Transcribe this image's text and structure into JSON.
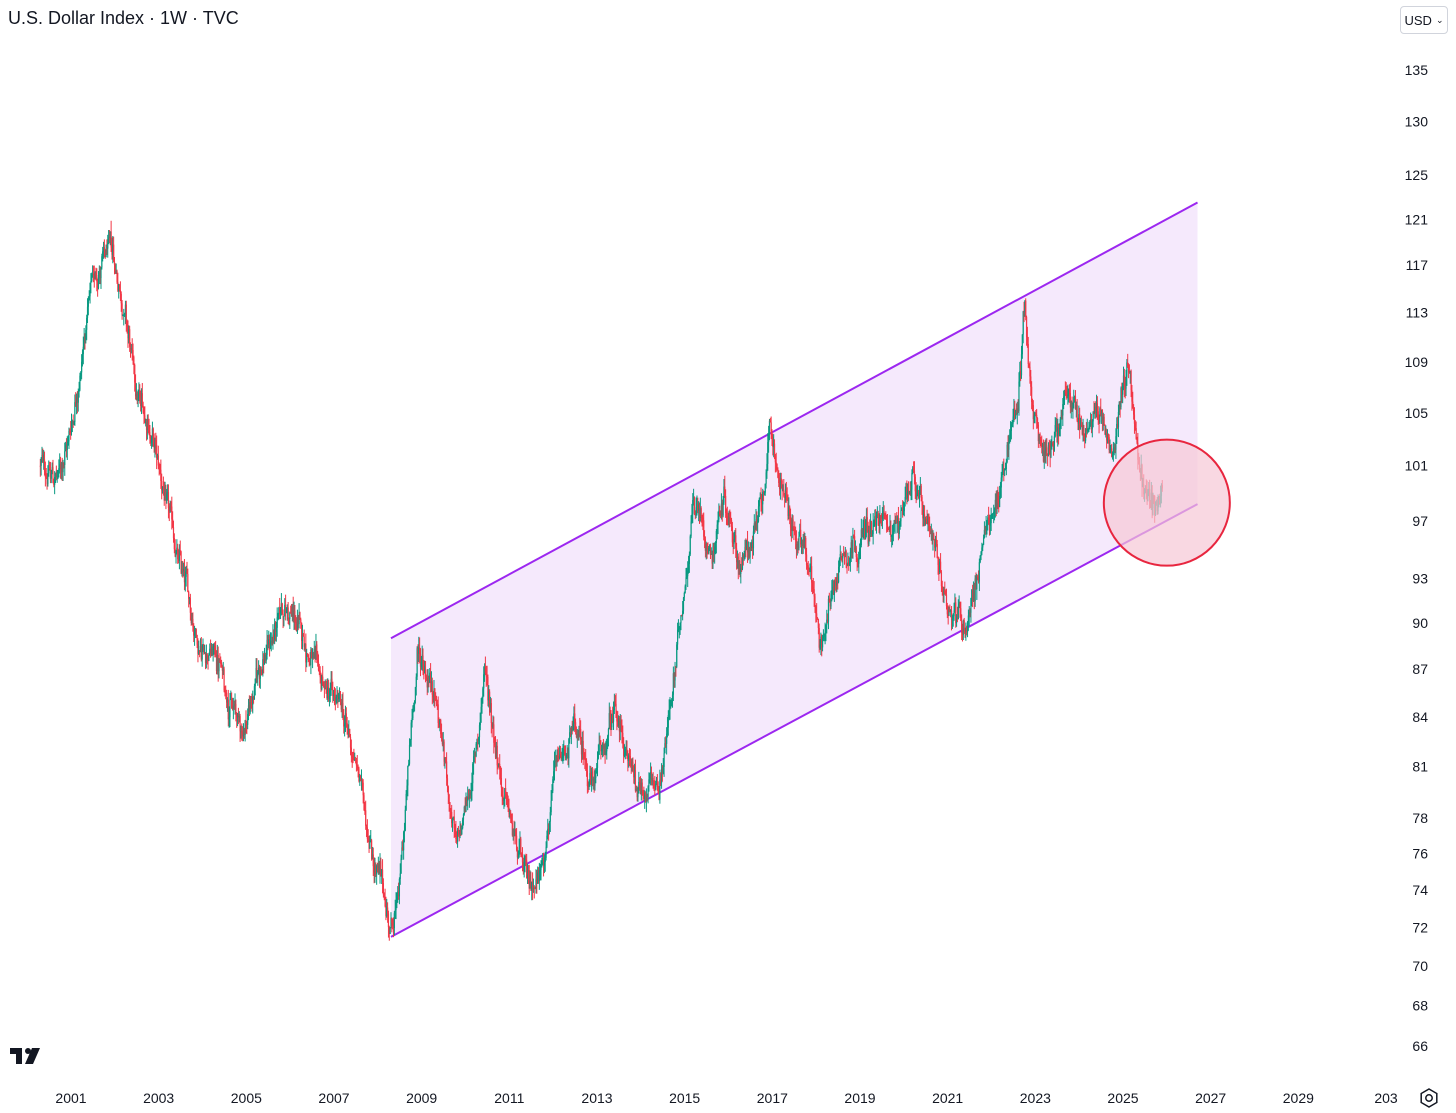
{
  "header": {
    "title": "U.S. Dollar Index · 1W · TVC",
    "currency_label": "USD"
  },
  "icons": {
    "logo": "tradingview-logo-icon",
    "currency_chevron": "chevron-down-icon",
    "settings": "settings-icon"
  },
  "colors": {
    "up": "#089981",
    "down": "#f23645",
    "channel_line": "#9c27f0",
    "channel_fill": "#f3e5fb",
    "highlight_stroke": "#e8263f",
    "highlight_fill": "#f6c7d5"
  },
  "chart_data": {
    "type": "candlestick",
    "title": "U.S. Dollar Index · 1W · TVC",
    "x_ticks": [
      "2001",
      "2003",
      "2005",
      "2007",
      "2009",
      "2011",
      "2013",
      "2015",
      "2017",
      "2019",
      "2021",
      "2023",
      "2025",
      "2027",
      "2029",
      "203"
    ],
    "y_ticks": [
      66,
      68,
      70,
      72,
      74,
      76,
      78,
      81,
      84,
      87,
      90,
      93,
      97,
      101,
      105,
      109,
      113,
      117,
      121,
      125,
      130,
      135
    ],
    "y_scale": "log",
    "xlim": [
      2000.3,
      2033.5
    ],
    "ylim": [
      64.2,
      139
    ],
    "grid": false,
    "price_path": [
      [
        2000.3,
        101
      ],
      [
        2000.7,
        100
      ],
      [
        2001.0,
        104
      ],
      [
        2001.5,
        116
      ],
      [
        2001.9,
        118
      ],
      [
        2002.2,
        114
      ],
      [
        2002.5,
        106
      ],
      [
        2002.8,
        104
      ],
      [
        2003.3,
        96
      ],
      [
        2003.9,
        89
      ],
      [
        2004.3,
        88
      ],
      [
        2004.9,
        83
      ],
      [
        2005.4,
        88
      ],
      [
        2005.9,
        91
      ],
      [
        2006.3,
        89
      ],
      [
        2006.7,
        86
      ],
      [
        2007.2,
        84
      ],
      [
        2007.6,
        80
      ],
      [
        2007.9,
        76
      ],
      [
        2008.3,
        72
      ],
      [
        2008.5,
        74
      ],
      [
        2008.9,
        88
      ],
      [
        2009.3,
        86
      ],
      [
        2009.8,
        76
      ],
      [
        2010.2,
        81
      ],
      [
        2010.45,
        87
      ],
      [
        2010.9,
        79
      ],
      [
        2011.4,
        74
      ],
      [
        2011.7,
        75
      ],
      [
        2012.0,
        80
      ],
      [
        2012.5,
        83
      ],
      [
        2012.9,
        80
      ],
      [
        2013.4,
        84
      ],
      [
        2013.9,
        80
      ],
      [
        2014.4,
        80
      ],
      [
        2014.8,
        87
      ],
      [
        2015.2,
        99
      ],
      [
        2015.6,
        95
      ],
      [
        2015.9,
        99
      ],
      [
        2016.3,
        94
      ],
      [
        2016.7,
        97
      ],
      [
        2016.95,
        103
      ],
      [
        2017.5,
        96
      ],
      [
        2017.9,
        93
      ],
      [
        2018.1,
        89
      ],
      [
        2018.6,
        95
      ],
      [
        2019.0,
        96
      ],
      [
        2019.5,
        97
      ],
      [
        2019.9,
        97
      ],
      [
        2020.2,
        101
      ],
      [
        2020.5,
        96
      ],
      [
        2020.9,
        92
      ],
      [
        2021.4,
        90
      ],
      [
        2021.9,
        96
      ],
      [
        2022.3,
        101
      ],
      [
        2022.6,
        106
      ],
      [
        2022.75,
        114
      ],
      [
        2022.95,
        105
      ],
      [
        2023.2,
        102
      ],
      [
        2023.5,
        104
      ],
      [
        2023.8,
        106
      ],
      [
        2024.1,
        103
      ],
      [
        2024.5,
        105
      ],
      [
        2024.75,
        101
      ],
      [
        2025.0,
        108
      ],
      [
        2025.15,
        109
      ],
      [
        2025.35,
        101
      ],
      [
        2025.6,
        98
      ],
      [
        2025.9,
        99
      ]
    ],
    "annotations": {
      "channel": {
        "upper_line": [
          [
            2008.3,
            89
          ],
          [
            2026.7,
            122.5
          ]
        ],
        "lower_line": [
          [
            2008.3,
            71.5
          ],
          [
            2026.7,
            98.2
          ]
        ]
      },
      "highlight_circle": {
        "center": [
          2026.0,
          98.3
        ]
      }
    }
  }
}
